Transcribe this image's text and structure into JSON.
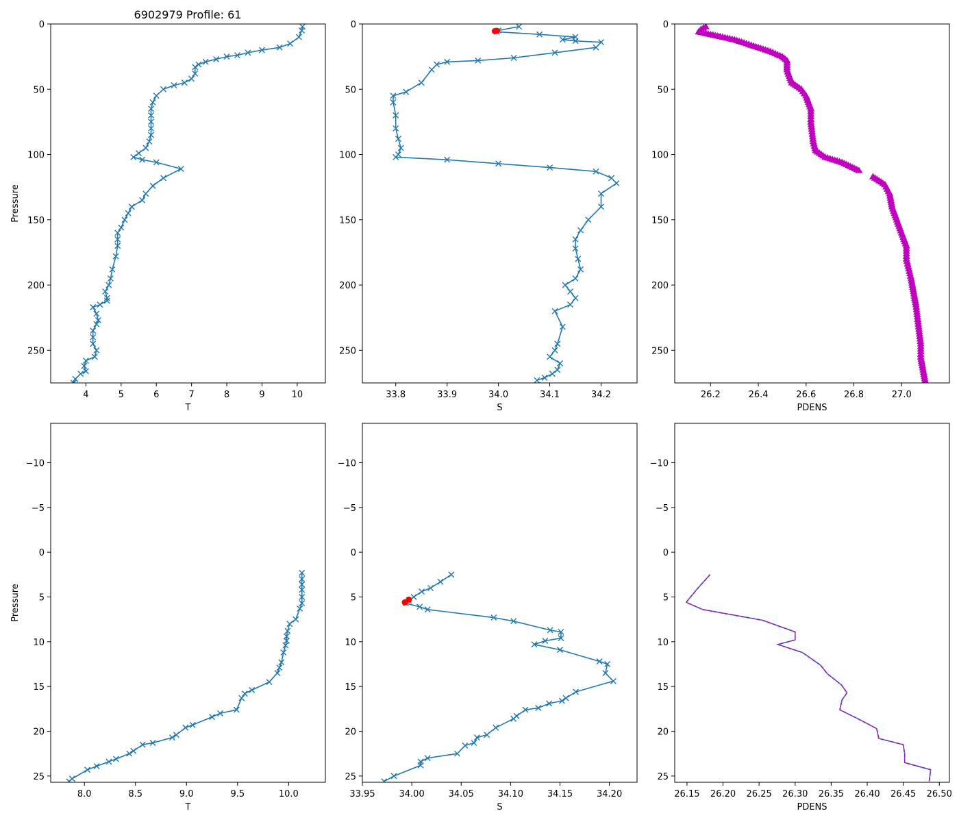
{
  "figure": {
    "title": "6902979 Profile: 61"
  },
  "colors": {
    "line": "#1f77b4",
    "flag": "#ff0000",
    "density": "#bf00bf"
  },
  "chart_data": [
    {
      "type": "line",
      "name": "temperature-full",
      "title": "6902979 Profile: 61",
      "xlabel": "T",
      "ylabel": "Pressure",
      "xlim": [
        3.0,
        10.8
      ],
      "ylim": [
        275,
        0
      ],
      "inverted_y": true,
      "xticks": [
        4,
        5,
        6,
        7,
        8,
        9,
        10
      ],
      "xtick_labels": [
        "4",
        "5",
        "6",
        "7",
        "8",
        "9",
        "10"
      ],
      "yticks": [
        0,
        50,
        100,
        150,
        200,
        250
      ],
      "ytick_labels": [
        "0",
        "50",
        "100",
        "150",
        "200",
        "250"
      ],
      "marker": "x",
      "series": [
        {
          "name": "T",
          "color": "#1f77b4",
          "x": [
            10.15,
            10.13,
            10.05,
            9.8,
            9.5,
            9.0,
            8.6,
            8.3,
            8.0,
            7.7,
            7.4,
            7.2,
            7.1,
            7.1,
            7.0,
            6.8,
            6.5,
            6.2,
            6.0,
            5.9,
            5.85,
            5.85,
            5.85,
            5.85,
            5.85,
            5.8,
            5.7,
            5.5,
            5.35,
            5.6,
            6.0,
            6.7,
            6.2,
            5.9,
            5.7,
            5.6,
            5.3,
            5.2,
            5.1,
            5.0,
            4.9,
            4.9,
            4.9,
            4.85,
            4.75,
            4.7,
            4.65,
            4.55,
            4.6,
            4.6,
            4.4,
            4.2,
            4.3,
            4.35,
            4.3,
            4.2,
            4.2,
            4.2,
            4.3,
            4.25,
            4.0,
            3.95,
            4.0,
            3.85,
            3.7,
            3.65
          ],
          "y": [
            2,
            5,
            10,
            15,
            18,
            20,
            22,
            24,
            25,
            27,
            29,
            31,
            33,
            38,
            42,
            45,
            47,
            50,
            55,
            60,
            65,
            70,
            75,
            80,
            85,
            90,
            95,
            99,
            102,
            104,
            106,
            111,
            118,
            124,
            130,
            135,
            140,
            145,
            150,
            156,
            160,
            165,
            170,
            178,
            188,
            195,
            200,
            205,
            210,
            212,
            215,
            217,
            222,
            227,
            230,
            235,
            240,
            245,
            250,
            255,
            258,
            262,
            266,
            268,
            272,
            275
          ]
        }
      ]
    },
    {
      "type": "line",
      "name": "salinity-full",
      "xlabel": "S",
      "ylabel": "",
      "xlim": [
        33.735,
        34.27
      ],
      "ylim": [
        275,
        0
      ],
      "inverted_y": true,
      "xticks": [
        33.8,
        33.9,
        34.0,
        34.1,
        34.2
      ],
      "xtick_labels": [
        "33.8",
        "33.9",
        "34.0",
        "34.1",
        "34.2"
      ],
      "yticks": [
        0,
        50,
        100,
        150,
        200,
        250
      ],
      "ytick_labels": [
        "0",
        "50",
        "100",
        "150",
        "200",
        "250"
      ],
      "marker": "x",
      "series": [
        {
          "name": "S",
          "color": "#1f77b4",
          "x": [
            34.04,
            34.0,
            33.997,
            34.08,
            34.15,
            34.125,
            34.15,
            34.2,
            34.19,
            34.11,
            34.03,
            33.96,
            33.9,
            33.88,
            33.87,
            33.85,
            33.82,
            33.795,
            33.795,
            33.8,
            33.8,
            33.805,
            33.81,
            33.805,
            33.8,
            33.9,
            34.0,
            34.1,
            34.19,
            34.22,
            34.23,
            34.2,
            34.2,
            34.175,
            34.16,
            34.15,
            34.15,
            34.155,
            34.16,
            34.15,
            34.13,
            34.14,
            34.15,
            34.14,
            34.11,
            34.125,
            34.115,
            34.11,
            34.1,
            34.12,
            34.115,
            34.105,
            34.09,
            34.075
          ],
          "y": [
            2,
            5,
            6,
            8,
            10,
            12,
            13,
            14,
            18,
            22,
            26,
            28,
            29,
            31,
            35,
            45,
            52,
            55,
            60,
            70,
            80,
            88,
            95,
            100,
            102,
            104,
            107,
            110,
            113,
            118,
            122,
            130,
            140,
            150,
            158,
            165,
            172,
            180,
            188,
            195,
            200,
            205,
            210,
            215,
            220,
            232,
            245,
            250,
            255,
            260,
            265,
            268,
            271,
            273
          ]
        },
        {
          "name": "flagged",
          "color": "#ff0000",
          "x": [
            33.993,
            33.997
          ],
          "y": [
            5.5,
            5.3
          ]
        }
      ]
    },
    {
      "type": "line",
      "name": "density-full",
      "xlabel": "PDENS",
      "ylabel": "",
      "xlim": [
        26.05,
        27.2
      ],
      "ylim": [
        275,
        0
      ],
      "inverted_y": true,
      "xticks": [
        26.2,
        26.4,
        26.6,
        26.8,
        27.0
      ],
      "xtick_labels": [
        "26.2",
        "26.4",
        "26.6",
        "26.8",
        "27.0"
      ],
      "yticks": [
        0,
        50,
        100,
        150,
        200,
        250
      ],
      "ytick_labels": [
        "0",
        "50",
        "100",
        "150",
        "200",
        "250"
      ],
      "marker": "^",
      "series": [
        {
          "name": "PDENS",
          "color": "#bf00bf",
          "x": [
            26.18,
            26.16,
            26.15,
            26.2,
            26.3,
            26.4,
            26.45,
            26.5,
            26.52,
            26.52,
            26.54,
            26.58,
            26.6,
            26.62,
            26.62,
            26.63,
            26.64,
            26.68,
            26.75,
            26.83
          ],
          "y": [
            2,
            4,
            6,
            8,
            12,
            18,
            21,
            25,
            28,
            35,
            45,
            50,
            55,
            65,
            75,
            90,
            97,
            102,
            106,
            113
          ]
        },
        {
          "name": "PDENS-deep",
          "color": "#bf00bf",
          "x": [
            26.88,
            26.93,
            26.95,
            26.96,
            26.98,
            27.0,
            27.02,
            27.02,
            27.04,
            27.05,
            27.06,
            27.07,
            27.08,
            27.08,
            27.09,
            27.1
          ],
          "y": [
            117,
            123,
            130,
            140,
            150,
            160,
            170,
            180,
            195,
            205,
            215,
            230,
            245,
            255,
            265,
            275
          ]
        }
      ]
    },
    {
      "type": "line",
      "name": "temperature-zoom",
      "xlabel": "T",
      "ylabel": "Pressure",
      "xlim": [
        7.67,
        10.36
      ],
      "ylim": [
        25.7,
        -14.4
      ],
      "inverted_y": true,
      "xticks": [
        8.0,
        8.5,
        9.0,
        9.5,
        10.0
      ],
      "xtick_labels": [
        "8.0",
        "8.5",
        "9.0",
        "9.5",
        "10.0"
      ],
      "yticks": [
        -10,
        -5,
        0,
        5,
        10,
        15,
        20,
        25
      ],
      "ytick_labels": [
        "−10",
        "−5",
        "0",
        "5",
        "10",
        "15",
        "20",
        "25"
      ],
      "marker": "x",
      "series": [
        {
          "name": "T",
          "color": "#1f77b4",
          "x": [
            10.13,
            10.13,
            10.13,
            10.13,
            10.13,
            10.13,
            10.11,
            10.07,
            10.01,
            9.99,
            9.98,
            9.98,
            9.97,
            9.95,
            9.93,
            9.91,
            9.89,
            9.81,
            9.64,
            9.57,
            9.54,
            9.49,
            9.33,
            9.25,
            9.06,
            8.99,
            8.9,
            8.86,
            8.67,
            8.57,
            8.48,
            8.44,
            8.31,
            8.24,
            8.12,
            8.03,
            7.88,
            7.85
          ],
          "y": [
            2.3,
            3.0,
            3.6,
            4.2,
            5.0,
            5.7,
            6.3,
            7.5,
            8.0,
            8.8,
            9.4,
            9.9,
            10.4,
            11.2,
            12.3,
            12.9,
            13.5,
            14.5,
            15.4,
            15.8,
            16.3,
            17.6,
            18.0,
            18.4,
            19.3,
            19.6,
            20.4,
            20.7,
            21.3,
            21.5,
            22.2,
            22.5,
            23.1,
            23.4,
            23.9,
            24.3,
            25.3,
            25.6
          ]
        }
      ]
    },
    {
      "type": "line",
      "name": "salinity-zoom",
      "xlabel": "S",
      "ylabel": "",
      "xlim": [
        33.95,
        34.228
      ],
      "ylim": [
        25.7,
        -14.4
      ],
      "inverted_y": true,
      "xticks": [
        33.95,
        34.0,
        34.05,
        34.1,
        34.15,
        34.2
      ],
      "xtick_labels": [
        "33.95",
        "34.00",
        "34.05",
        "34.10",
        "34.15",
        "34.20"
      ],
      "yticks": [
        -10,
        -5,
        0,
        5,
        10,
        15,
        20,
        25
      ],
      "ytick_labels": [
        "−10",
        "−5",
        "0",
        "5",
        "10",
        "15",
        "20",
        "25"
      ],
      "marker": "x",
      "series": [
        {
          "name": "S",
          "color": "#1f77b4",
          "x": [
            34.04,
            34.029,
            34.019,
            34.01,
            34.002,
            33.997,
            33.994,
            34.008,
            34.016,
            34.083,
            34.103,
            34.14,
            34.151,
            34.151,
            34.135,
            34.124,
            34.15,
            34.19,
            34.198,
            34.196,
            34.204,
            34.166,
            34.156,
            34.152,
            34.139,
            34.128,
            34.115,
            34.106,
            34.103,
            34.085,
            34.076,
            34.066,
            34.063,
            34.054,
            34.046,
            34.016,
            34.009,
            34.009,
            33.982,
            33.972
          ],
          "y": [
            2.5,
            3.3,
            4.0,
            4.4,
            5.0,
            5.4,
            5.7,
            6.1,
            6.4,
            7.3,
            7.7,
            8.7,
            8.9,
            9.6,
            9.9,
            10.3,
            10.9,
            12.2,
            12.5,
            13.5,
            14.4,
            15.6,
            16.3,
            16.6,
            16.9,
            17.4,
            17.6,
            18.3,
            18.6,
            19.6,
            20.4,
            20.7,
            21.3,
            21.6,
            22.5,
            23.0,
            23.4,
            23.8,
            25.0,
            25.6
          ]
        },
        {
          "name": "flagged",
          "color": "#ff0000",
          "x": [
            33.993,
            33.997
          ],
          "y": [
            5.6,
            5.3
          ]
        }
      ]
    },
    {
      "type": "line",
      "name": "density-zoom",
      "xlabel": "PDENS",
      "ylabel": "",
      "xlim": [
        26.133,
        26.514
      ],
      "ylim": [
        25.7,
        -14.4
      ],
      "inverted_y": true,
      "xticks": [
        26.15,
        26.2,
        26.25,
        26.3,
        26.35,
        26.4,
        26.45,
        26.5
      ],
      "xtick_labels": [
        "26.15",
        "26.20",
        "26.25",
        "26.30",
        "26.35",
        "26.40",
        "26.45",
        "26.50"
      ],
      "yticks": [
        -10,
        -5,
        0,
        5,
        10,
        15,
        20,
        25
      ],
      "ytick_labels": [
        "−10",
        "−5",
        "0",
        "5",
        "10",
        "15",
        "20",
        "25"
      ],
      "marker": "none",
      "series": [
        {
          "name": "PDENS",
          "color": "#1f77b4",
          "dash_color": "#bf00bf",
          "x": [
            26.182,
            26.163,
            26.149,
            26.172,
            26.255,
            26.3,
            26.3,
            26.276,
            26.31,
            26.335,
            26.345,
            26.364,
            26.372,
            26.365,
            26.362,
            26.387,
            26.413,
            26.416,
            26.45,
            26.452,
            26.452,
            26.488,
            26.486
          ],
          "y": [
            2.5,
            4.2,
            5.6,
            6.4,
            7.6,
            8.9,
            9.8,
            10.3,
            11.2,
            12.6,
            13.6,
            14.8,
            15.7,
            16.5,
            17.6,
            18.6,
            19.7,
            20.8,
            21.5,
            22.5,
            23.5,
            24.3,
            25.6
          ]
        }
      ]
    }
  ]
}
